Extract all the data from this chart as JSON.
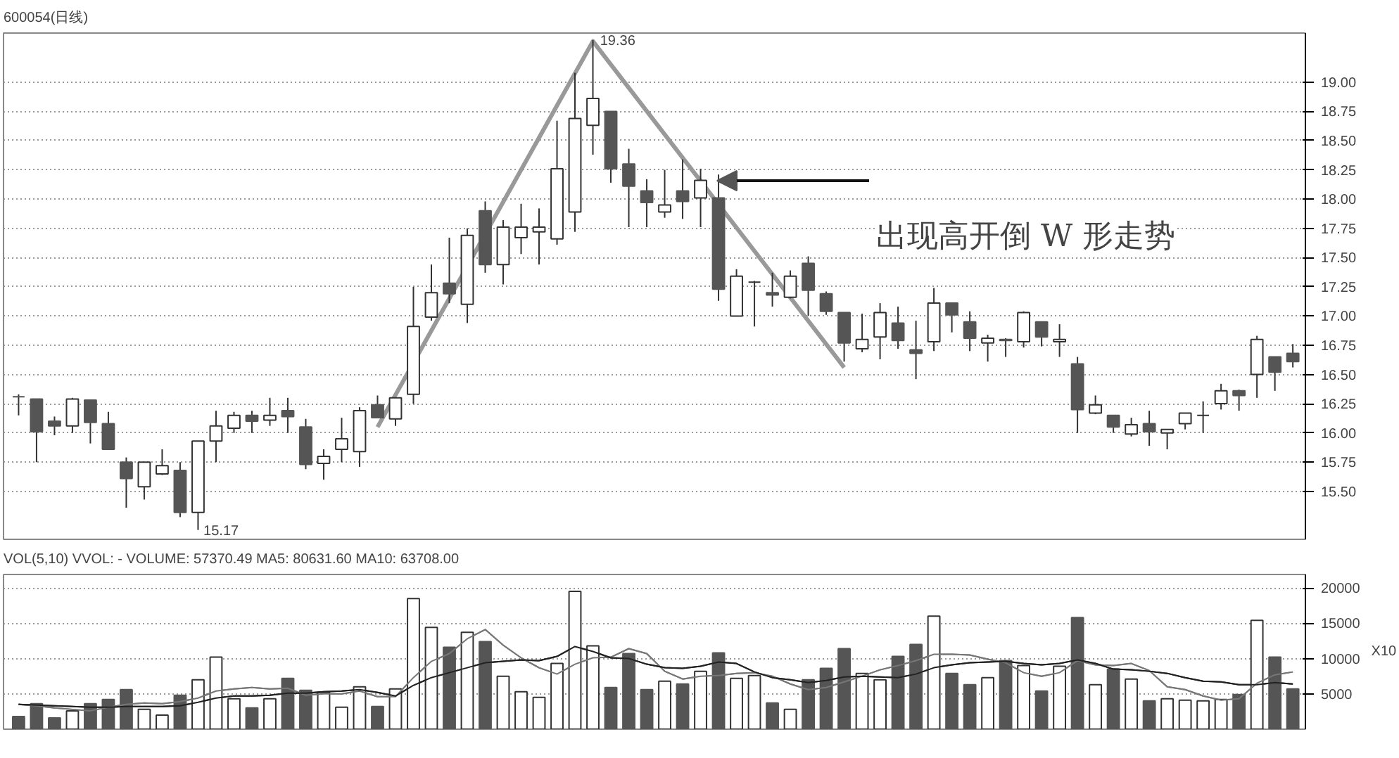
{
  "chart_data": [
    {
      "type": "candlestick",
      "title": "600054(日线)",
      "categories": [
        null,
        null,
        null,
        null,
        null,
        null,
        null,
        null,
        null,
        null,
        null,
        null,
        null,
        null,
        null,
        null,
        null,
        null,
        null,
        null,
        null,
        null,
        null,
        null,
        null,
        null,
        null,
        null,
        null,
        null,
        null,
        null,
        null,
        null,
        null,
        null,
        null,
        null,
        null,
        null,
        null,
        null,
        null,
        null,
        null,
        null,
        null,
        null,
        null,
        null,
        null,
        null,
        null,
        null,
        null,
        null,
        null,
        null,
        null,
        null,
        null,
        null,
        null,
        null,
        null,
        null,
        null,
        null,
        null,
        null,
        null,
        null
      ],
      "ohlc": [
        [
          16.31,
          16.33,
          16.15,
          16.31
        ],
        [
          16.29,
          16.29,
          15.75,
          16.01
        ],
        [
          16.1,
          16.14,
          15.98,
          16.06
        ],
        [
          16.06,
          16.3,
          16.0,
          16.29
        ],
        [
          16.28,
          16.28,
          15.91,
          16.09
        ],
        [
          16.08,
          16.18,
          15.86,
          15.86
        ],
        [
          15.75,
          15.79,
          15.36,
          15.61
        ],
        [
          15.54,
          15.75,
          15.43,
          15.75
        ],
        [
          15.65,
          15.86,
          15.64,
          15.72
        ],
        [
          15.68,
          15.75,
          15.28,
          15.32
        ],
        [
          15.32,
          15.93,
          15.17,
          15.93
        ],
        [
          15.93,
          16.19,
          15.75,
          16.06
        ],
        [
          16.04,
          16.18,
          16.0,
          16.15
        ],
        [
          16.15,
          16.19,
          16.0,
          16.1
        ],
        [
          16.11,
          16.3,
          16.06,
          16.15
        ],
        [
          16.19,
          16.3,
          16.0,
          16.14
        ],
        [
          16.05,
          16.12,
          15.69,
          15.73
        ],
        [
          15.74,
          15.86,
          15.6,
          15.8
        ],
        [
          15.86,
          16.13,
          15.75,
          15.95
        ],
        [
          15.84,
          16.22,
          15.71,
          16.19
        ],
        [
          16.24,
          16.32,
          16.13,
          16.13
        ],
        [
          16.12,
          16.3,
          16.06,
          16.3
        ],
        [
          16.33,
          17.25,
          16.25,
          16.91
        ],
        [
          16.99,
          17.44,
          16.96,
          17.2
        ],
        [
          17.28,
          17.67,
          17.11,
          17.19
        ],
        [
          17.1,
          17.75,
          16.94,
          17.69
        ],
        [
          17.9,
          17.98,
          17.37,
          17.44
        ],
        [
          17.44,
          17.82,
          17.27,
          17.76
        ],
        [
          17.67,
          17.96,
          17.53,
          17.76
        ],
        [
          17.72,
          17.92,
          17.44,
          17.76
        ],
        [
          17.66,
          18.67,
          17.61,
          18.26
        ],
        [
          17.89,
          19.08,
          17.72,
          18.69
        ],
        [
          18.63,
          19.36,
          18.38,
          18.86
        ],
        [
          18.75,
          18.75,
          18.14,
          18.26
        ],
        [
          18.3,
          18.43,
          17.76,
          18.11
        ],
        [
          18.07,
          18.17,
          17.76,
          17.97
        ],
        [
          17.89,
          18.25,
          17.84,
          17.95
        ],
        [
          18.07,
          18.34,
          17.83,
          17.98
        ],
        [
          18.01,
          18.26,
          17.76,
          18.16
        ],
        [
          18.01,
          18.21,
          17.13,
          17.23
        ],
        [
          17.0,
          17.4,
          17.0,
          17.34
        ],
        [
          17.29,
          17.3,
          16.91,
          17.29
        ],
        [
          17.2,
          17.37,
          17.08,
          17.18
        ],
        [
          17.16,
          17.39,
          17.15,
          17.34
        ],
        [
          17.45,
          17.51,
          17.0,
          17.22
        ],
        [
          17.19,
          17.21,
          17.01,
          17.04
        ],
        [
          17.03,
          17.03,
          16.61,
          16.77
        ],
        [
          16.72,
          17.02,
          16.69,
          16.8
        ],
        [
          16.82,
          17.11,
          16.63,
          17.03
        ],
        [
          16.94,
          17.08,
          16.72,
          16.79
        ],
        [
          16.71,
          16.96,
          16.46,
          16.68
        ],
        [
          16.78,
          17.24,
          16.7,
          17.11
        ],
        [
          17.11,
          17.11,
          16.86,
          17.01
        ],
        [
          16.95,
          17.04,
          16.7,
          16.81
        ],
        [
          16.77,
          16.84,
          16.61,
          16.81
        ],
        [
          16.8,
          16.81,
          16.65,
          16.79
        ],
        [
          16.78,
          17.04,
          16.73,
          17.03
        ],
        [
          16.95,
          16.95,
          16.74,
          16.82
        ],
        [
          16.78,
          16.93,
          16.65,
          16.8
        ],
        [
          16.59,
          16.65,
          16.0,
          16.2
        ],
        [
          16.17,
          16.32,
          16.16,
          16.24
        ],
        [
          16.15,
          16.15,
          16.0,
          16.05
        ],
        [
          15.99,
          16.13,
          15.97,
          16.07
        ],
        [
          16.08,
          16.19,
          15.89,
          16.01
        ],
        [
          16.0,
          16.03,
          15.86,
          16.03
        ],
        [
          16.08,
          16.17,
          16.03,
          16.17
        ],
        [
          16.15,
          16.27,
          16.0,
          16.15
        ],
        [
          16.25,
          16.42,
          16.2,
          16.36
        ],
        [
          16.36,
          16.37,
          16.19,
          16.32
        ],
        [
          16.5,
          16.83,
          16.3,
          16.8
        ],
        [
          16.65,
          16.65,
          16.36,
          16.52
        ],
        [
          16.68,
          16.76,
          16.56,
          16.61
        ]
      ],
      "colors": [
        "#555555",
        "#555555",
        "#555555",
        "#ffffff",
        "#555555",
        "#555555",
        "#555555",
        "#ffffff",
        "#ffffff",
        "#555555",
        "#ffffff",
        "#ffffff",
        "#ffffff",
        "#555555",
        "#ffffff",
        "#555555",
        "#555555",
        "#ffffff",
        "#ffffff",
        "#ffffff",
        "#555555",
        "#ffffff",
        "#ffffff",
        "#ffffff",
        "#555555",
        "#ffffff",
        "#555555",
        "#ffffff",
        "#ffffff",
        "#ffffff",
        "#ffffff",
        "#ffffff",
        "#ffffff",
        "#555555",
        "#555555",
        "#555555",
        "#ffffff",
        "#555555",
        "#ffffff",
        "#555555",
        "#ffffff",
        "#333333",
        "#555555",
        "#ffffff",
        "#555555",
        "#555555",
        "#555555",
        "#ffffff",
        "#ffffff",
        "#555555",
        "#555555",
        "#ffffff",
        "#555555",
        "#555555",
        "#ffffff",
        "#555555",
        "#ffffff",
        "#555555",
        "#ffffff",
        "#555555",
        "#ffffff",
        "#555555",
        "#ffffff",
        "#555555",
        "#ffffff",
        "#ffffff",
        "#333333",
        "#ffffff",
        "#555555",
        "#ffffff",
        "#555555",
        "#555555"
      ],
      "series": [
        {
          "type": "line",
          "color": "#999999",
          "values": [
            null,
            null,
            null,
            null,
            null,
            null,
            null,
            null,
            null,
            null,
            null,
            null,
            null,
            null,
            null,
            null,
            null,
            null,
            null,
            null,
            16.05,
            null,
            null,
            null,
            null,
            null,
            null,
            null,
            null,
            null,
            null,
            null,
            19.35,
            null,
            null,
            null,
            null,
            null,
            null,
            null,
            null,
            null,
            null,
            null,
            null,
            null,
            16.56,
            null,
            null,
            null,
            null,
            null,
            null,
            null,
            null,
            null,
            null,
            null,
            null,
            null,
            null,
            null,
            null,
            null,
            null,
            null,
            null,
            null,
            null,
            null,
            null,
            null
          ]
        }
      ],
      "ylim": [
        15.09,
        19.42
      ],
      "yticks": [
        {
          "value": 15.5,
          "label": "15.50"
        },
        {
          "value": 15.75,
          "label": "15.75"
        },
        {
          "value": 16,
          "label": "16.00"
        },
        {
          "value": 16.25,
          "label": "16.25"
        },
        {
          "value": 16.5,
          "label": "16.50"
        },
        {
          "value": 16.75,
          "label": "16.75"
        },
        {
          "value": 17,
          "label": "17.00"
        },
        {
          "value": 17.25,
          "label": "17.25"
        },
        {
          "value": 17.5,
          "label": "17.50"
        },
        {
          "value": 17.75,
          "label": "17.75"
        },
        {
          "value": 18,
          "label": "18.00"
        },
        {
          "value": 18.25,
          "label": "18.25"
        },
        {
          "value": 18.5,
          "label": "18.50"
        },
        {
          "value": 18.75,
          "label": "18.75"
        },
        {
          "value": 19,
          "label": "19.00"
        }
      ],
      "annotations": [
        "19.36",
        "15.17",
        "出现高开倒 W 形走势"
      ],
      "grid": "y",
      "line_style": "solid",
      "marker": "none"
    },
    {
      "type": "bar",
      "title": "VOL(5,10) VVOL: -   VOLUME: 57370.49 MA5: 80631.60 MA10: 63708.00",
      "ylabel": "X10",
      "categories": [
        null,
        null,
        null,
        null,
        null,
        null,
        null,
        null,
        null,
        null,
        null,
        null,
        null,
        null,
        null,
        null,
        null,
        null,
        null,
        null,
        null,
        null,
        null,
        null,
        null,
        null,
        null,
        null,
        null,
        null,
        null,
        null,
        null,
        null,
        null,
        null,
        null,
        null,
        null,
        null,
        null,
        null,
        null,
        null,
        null,
        null,
        null,
        null,
        null,
        null,
        null,
        null,
        null,
        null,
        null,
        null,
        null,
        null,
        null,
        null,
        null,
        null,
        null,
        null,
        null,
        null,
        null,
        null,
        null,
        null,
        null,
        null
      ],
      "series": [
        {
          "type": "bar",
          "colors": [
            "#555555",
            "#555555",
            "#555555",
            "#ffffff",
            "#555555",
            "#555555",
            "#555555",
            "#ffffff",
            "#ffffff",
            "#555555",
            "#ffffff",
            "#ffffff",
            "#ffffff",
            "#555555",
            "#ffffff",
            "#555555",
            "#555555",
            "#ffffff",
            "#ffffff",
            "#ffffff",
            "#555555",
            "#ffffff",
            "#ffffff",
            "#ffffff",
            "#555555",
            "#ffffff",
            "#555555",
            "#ffffff",
            "#ffffff",
            "#ffffff",
            "#ffffff",
            "#ffffff",
            "#ffffff",
            "#555555",
            "#555555",
            "#555555",
            "#ffffff",
            "#555555",
            "#ffffff",
            "#555555",
            "#ffffff",
            "#ffffff",
            "#555555",
            "#ffffff",
            "#555555",
            "#555555",
            "#555555",
            "#ffffff",
            "#ffffff",
            "#555555",
            "#555555",
            "#ffffff",
            "#555555",
            "#555555",
            "#ffffff",
            "#555555",
            "#ffffff",
            "#555555",
            "#ffffff",
            "#555555",
            "#ffffff",
            "#555555",
            "#ffffff",
            "#555555",
            "#ffffff",
            "#ffffff",
            "#ffffff",
            "#ffffff",
            "#555555",
            "#ffffff",
            "#555555",
            "#555555"
          ],
          "values": [
            1800,
            3600,
            1600,
            2600,
            3600,
            4200,
            5600,
            2800,
            2000,
            4800,
            7000,
            10200,
            4300,
            3000,
            4300,
            7200,
            5500,
            5200,
            3100,
            6000,
            3200,
            5700,
            18500,
            14400,
            11600,
            13700,
            12400,
            7500,
            5300,
            4500,
            9300,
            19500,
            11800,
            5900,
            10700,
            5600,
            6800,
            6400,
            8200,
            10800,
            7200,
            7600,
            3700,
            2800,
            7000,
            8600,
            11400,
            7900,
            7000,
            10300,
            12000,
            16000,
            7900,
            6300,
            7300,
            9700,
            9000,
            5400,
            8900,
            15800,
            6300,
            8500,
            7100,
            4000,
            4300,
            4100,
            4000,
            4200,
            4900,
            15400,
            10200,
            5700
          ]
        },
        {
          "type": "line",
          "color": "#777777",
          "values": [
            3500,
            3300,
            3000,
            2800,
            2600,
            3100,
            3500,
            3700,
            3600,
            3900,
            4400,
            5400,
            5700,
            5900,
            5700,
            5800,
            4800,
            5000,
            5000,
            5400,
            4600,
            4600,
            7300,
            9600,
            10700,
            12800,
            14100,
            11900,
            10100,
            8700,
            7800,
            9200,
            10100,
            10200,
            11400,
            10700,
            8200,
            7100,
            7500,
            7600,
            7900,
            8000,
            7500,
            6400,
            5600,
            5900,
            6700,
            7500,
            8400,
            9000,
            9700,
            10600,
            10600,
            10500,
            9900,
            9400,
            8000,
            7500,
            8000,
            9700,
            9100,
            9000,
            9300,
            8300,
            6000,
            5600,
            4700,
            4100,
            4300,
            6500,
            7700,
            8100
          ]
        },
        {
          "type": "line",
          "color": "#222222",
          "values": [
            3500,
            3400,
            3300,
            3200,
            3100,
            3100,
            3200,
            3200,
            3200,
            3300,
            3800,
            4400,
            4700,
            4700,
            4800,
            5100,
            5100,
            5300,
            5400,
            5600,
            5200,
            4700,
            6200,
            7300,
            8000,
            8700,
            9400,
            9600,
            9800,
            9700,
            10300,
            11700,
            11000,
            10100,
            10000,
            9200,
            8700,
            8600,
            8900,
            9500,
            9300,
            8100,
            7300,
            7000,
            6600,
            6900,
            7400,
            7500,
            7400,
            7300,
            7800,
            8700,
            9100,
            9400,
            9500,
            9600,
            9300,
            9100,
            9300,
            9800,
            9300,
            8500,
            8400,
            8200,
            7900,
            7300,
            6800,
            6700,
            6300,
            6300,
            6600,
            6400
          ]
        }
      ],
      "ylim": [
        0,
        21900
      ],
      "yticks": [
        5000,
        10000,
        15000,
        20000
      ],
      "grid": "y",
      "line_style": "solid",
      "marker": "none"
    }
  ]
}
